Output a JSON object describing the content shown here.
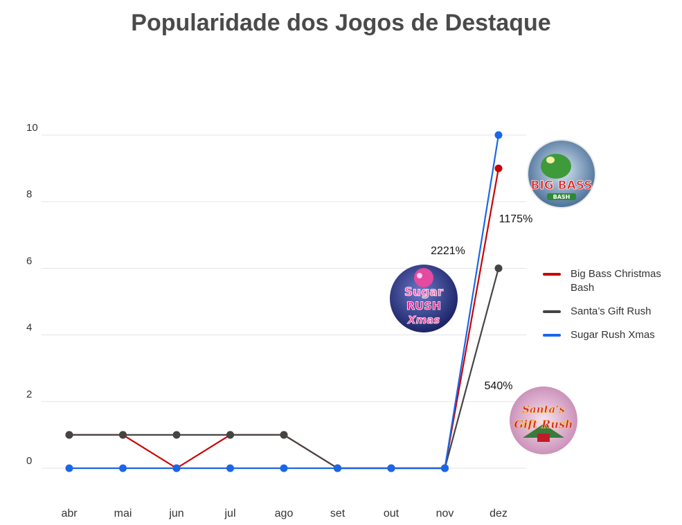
{
  "chart_data": {
    "type": "line",
    "title": "Popularidade dos Jogos de Destaque",
    "categories": [
      "abr",
      "mai",
      "jun",
      "jul",
      "ago",
      "set",
      "out",
      "nov",
      "dez"
    ],
    "ylim": [
      0,
      10
    ],
    "yticks": [
      0,
      2,
      4,
      6,
      8,
      10
    ],
    "grid": true,
    "legend_position": "right",
    "series": [
      {
        "name": "Big Bass Christmas Bash",
        "color": "#cc0000",
        "values": [
          1,
          1,
          0,
          1,
          1,
          0,
          0,
          0,
          9
        ]
      },
      {
        "name": "Santa’s Gift Rush",
        "color": "#444444",
        "values": [
          1,
          1,
          1,
          1,
          1,
          0,
          0,
          0,
          6
        ]
      },
      {
        "name": "Sugar Rush Xmas",
        "color": "#1a66e8",
        "values": [
          0,
          0,
          0,
          0,
          0,
          0,
          0,
          0,
          10
        ]
      }
    ],
    "annotations": [
      {
        "text": "1175%",
        "series": "Big Bass Christmas Bash"
      },
      {
        "text": "2221%",
        "series": "Sugar Rush Xmas"
      },
      {
        "text": "540%",
        "series": "Santa’s Gift Rush"
      }
    ],
    "badges": [
      {
        "series": "Big Bass Christmas Bash",
        "icon": "big-bass-christmas-bash-logo",
        "lines": [
          "BIG BASS",
          "BASH"
        ]
      },
      {
        "series": "Sugar Rush Xmas",
        "icon": "sugar-rush-xmas-logo",
        "lines": [
          "Sugar",
          "RUSH",
          "Xmas"
        ]
      },
      {
        "series": "Santa’s Gift Rush",
        "icon": "santas-gift-rush-logo",
        "lines": [
          "Santa’s",
          "Gift Rush"
        ]
      }
    ]
  }
}
